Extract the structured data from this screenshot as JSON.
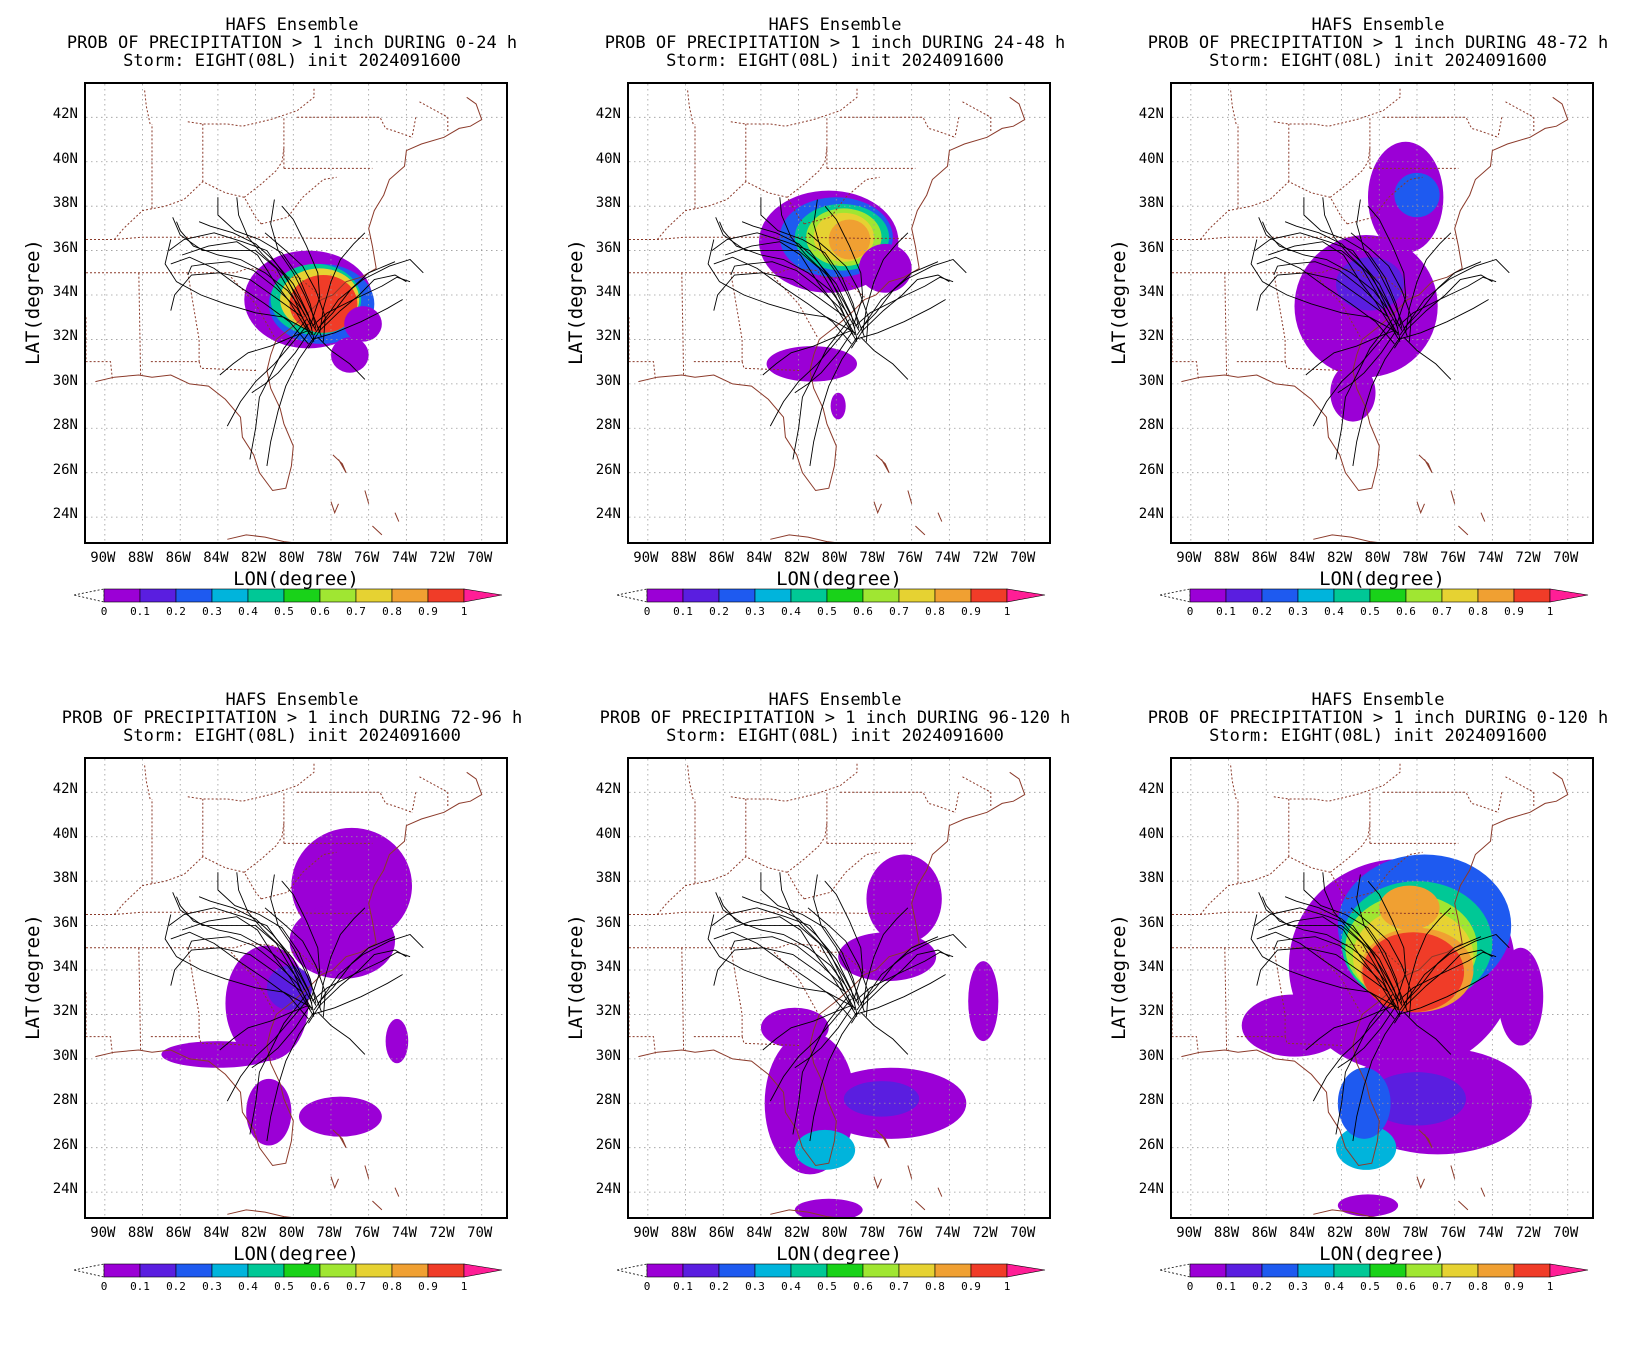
{
  "panels": [
    {
      "line1": "HAFS Ensemble",
      "line2": "PROB OF PRECIPITATION > 1 inch DURING  0-24 h",
      "line3": "Storm: EIGHT(08L) init 2024091600",
      "window": "0-24"
    },
    {
      "line1": "HAFS Ensemble",
      "line2": "PROB OF PRECIPITATION > 1 inch DURING 24-48 h",
      "line3": "Storm: EIGHT(08L) init 2024091600",
      "window": "24-48"
    },
    {
      "line1": "HAFS Ensemble",
      "line2": "PROB OF PRECIPITATION > 1 inch DURING 48-72 h",
      "line3": "Storm: EIGHT(08L) init 2024091600",
      "window": "48-72"
    },
    {
      "line1": "HAFS Ensemble",
      "line2": "PROB OF PRECIPITATION > 1 inch DURING 72-96 h",
      "line3": "Storm: EIGHT(08L) init 2024091600",
      "window": "72-96"
    },
    {
      "line1": "HAFS Ensemble",
      "line2": "PROB OF PRECIPITATION > 1 inch DURING 96-120 h",
      "line3": "Storm: EIGHT(08L) init 2024091600",
      "window": "96-120"
    },
    {
      "line1": "HAFS Ensemble",
      "line2": "PROB OF PRECIPITATION > 1 inch DURING 0-120 h",
      "line3": "Storm: EIGHT(08L) init 2024091600",
      "window": "0-120"
    }
  ],
  "axes": {
    "xlabel": "LON(degree)",
    "ylabel": "LAT(degree)",
    "lat_ticks": [
      "24N",
      "26N",
      "28N",
      "30N",
      "32N",
      "34N",
      "36N",
      "38N",
      "40N",
      "42N"
    ],
    "lon_ticks": [
      "90W",
      "88W",
      "86W",
      "84W",
      "82W",
      "80W",
      "78W",
      "76W",
      "74W",
      "72W",
      "70W"
    ]
  },
  "colorbar": {
    "labels": [
      "0",
      "0.1",
      "0.2",
      "0.3",
      "0.4",
      "0.5",
      "0.6",
      "0.7",
      "0.8",
      "0.9",
      "1"
    ],
    "colors": [
      "#9b00d6",
      "#5a1ee0",
      "#1e5af0",
      "#00b4dc",
      "#00c896",
      "#19d219",
      "#a0e632",
      "#e6d232",
      "#f0a032",
      "#f03c28",
      "#ff1e96"
    ]
  },
  "map_colors": {
    "borders": "#8b3a2a",
    "grid": "#9a9a9a",
    "tracks": "#000000"
  }
}
